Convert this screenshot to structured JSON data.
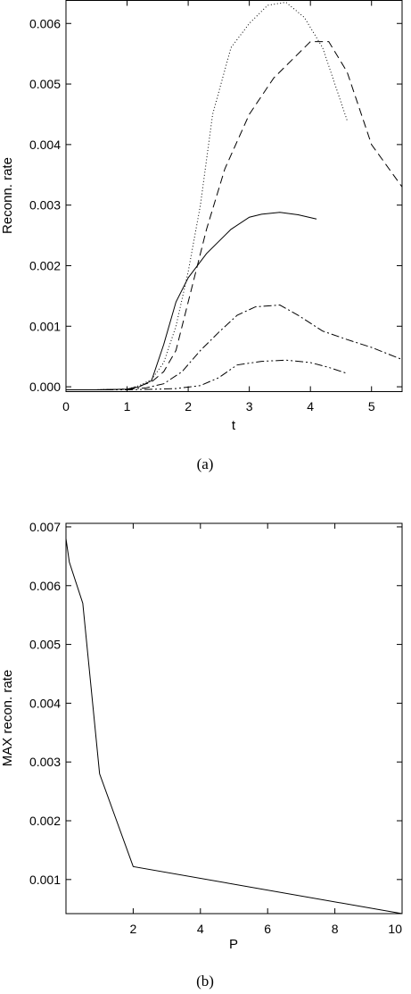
{
  "chart_data": [
    {
      "type": "line",
      "panel_label": "(a)",
      "xlabel": "t",
      "ylabel": "Reconn. rate",
      "xlim": [
        0,
        5.5
      ],
      "ylim": [
        -8e-05,
        0.00638
      ],
      "xticks": [
        0,
        1,
        2,
        3,
        4,
        5
      ],
      "xtick_labels": [
        "0",
        "1",
        "2",
        "3",
        "4",
        "5"
      ],
      "yticks": [
        0.0,
        0.001,
        0.002,
        0.003,
        0.004,
        0.005,
        0.006
      ],
      "ytick_labels": [
        "0.000",
        "0.001",
        "0.002",
        "0.003",
        "0.004",
        "0.005",
        "0.006"
      ],
      "grid": false,
      "legend": "none",
      "series": [
        {
          "style": "dotted",
          "x": [
            0,
            0.5,
            1.0,
            1.2,
            1.4,
            1.6,
            1.8,
            2.0,
            2.2,
            2.4,
            2.7,
            3.0,
            3.3,
            3.6,
            3.9,
            4.2,
            4.4,
            4.6
          ],
          "y": [
            -5e-05,
            -5e-05,
            -4e-05,
            2e-05,
            0.00012,
            0.0004,
            0.001,
            0.0019,
            0.003,
            0.0045,
            0.0056,
            0.006,
            0.0063,
            0.00635,
            0.0061,
            0.0056,
            0.005,
            0.0044
          ]
        },
        {
          "style": "dashed",
          "x": [
            0,
            0.5,
            1.0,
            1.2,
            1.4,
            1.6,
            1.8,
            2.0,
            2.3,
            2.6,
            3.0,
            3.4,
            3.7,
            4.0,
            4.3,
            4.6,
            5.0,
            5.5
          ],
          "y": [
            -5e-05,
            -5e-05,
            -4e-05,
            1e-05,
            8e-05,
            0.00025,
            0.0006,
            0.0014,
            0.0026,
            0.0036,
            0.0045,
            0.0051,
            0.0054,
            0.0057,
            0.0057,
            0.0052,
            0.004,
            0.0033
          ]
        },
        {
          "style": "solid",
          "x": [
            0,
            0.5,
            1.0,
            1.2,
            1.4,
            1.6,
            1.8,
            2.0,
            2.3,
            2.7,
            3.0,
            3.2,
            3.5,
            3.8,
            4.1
          ],
          "y": [
            -5e-05,
            -5e-05,
            -4e-05,
            0.0,
            0.0001,
            0.0007,
            0.0014,
            0.0018,
            0.0022,
            0.0026,
            0.0028,
            0.00285,
            0.00288,
            0.00284,
            0.00277
          ]
        },
        {
          "style": "dashdot",
          "x": [
            0,
            0.5,
            1.0,
            1.3,
            1.6,
            1.9,
            2.2,
            2.5,
            2.8,
            3.1,
            3.5,
            3.8,
            4.2,
            4.6,
            5.0,
            5.5
          ],
          "y": [
            -5e-05,
            -5e-05,
            -4e-05,
            -2e-05,
            5e-05,
            0.00025,
            0.0006,
            0.0009,
            0.00118,
            0.00132,
            0.00135,
            0.00118,
            0.00092,
            0.00078,
            0.00065,
            0.00045
          ]
        },
        {
          "style": "dashdotdot",
          "x": [
            0,
            0.5,
            1.0,
            1.5,
            1.8,
            2.2,
            2.5,
            2.8,
            3.2,
            3.6,
            4.0,
            4.3,
            4.6
          ],
          "y": [
            -5e-05,
            -5e-05,
            -5e-05,
            -4e-05,
            -3e-05,
            2e-05,
            0.00015,
            0.00036,
            0.00042,
            0.00044,
            0.0004,
            0.00032,
            0.00022
          ]
        }
      ]
    },
    {
      "type": "line",
      "panel_label": "(b)",
      "xlabel": "P",
      "ylabel": "MAX recon. rate",
      "xlim": [
        0,
        10
      ],
      "ylim": [
        0.00042,
        0.00706
      ],
      "xticks": [
        2,
        4,
        6,
        8,
        10
      ],
      "xtick_labels": [
        "2",
        "4",
        "6",
        "8",
        "10"
      ],
      "yticks": [
        0.001,
        0.002,
        0.003,
        0.004,
        0.005,
        0.006,
        0.007
      ],
      "ytick_labels": [
        "0.001",
        "0.002",
        "0.003",
        "0.004",
        "0.005",
        "0.006",
        "0.007"
      ],
      "grid": false,
      "legend": "none",
      "series": [
        {
          "style": "solid",
          "x": [
            0.0,
            0.1,
            0.5,
            1.0,
            2.0,
            10.0
          ],
          "y": [
            0.0068,
            0.0064,
            0.0057,
            0.0028,
            0.00122,
            0.00042
          ]
        }
      ]
    }
  ]
}
